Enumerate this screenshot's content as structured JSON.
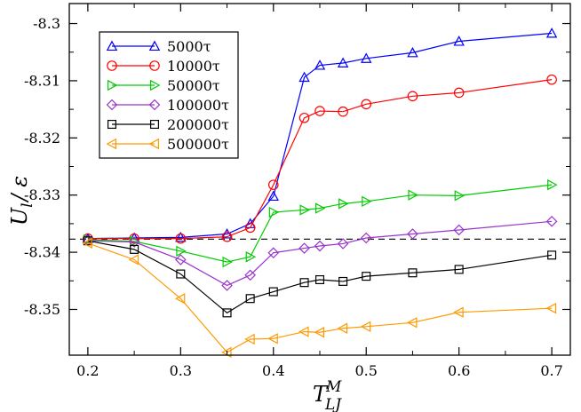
{
  "chart_data": {
    "type": "line",
    "xlabel": {
      "main": "T",
      "sub": "LJ",
      "sup": "M"
    },
    "ylabel": {
      "main": "U",
      "sub": "l",
      "rest": "/ ε"
    },
    "xlim": [
      0.18,
      0.72
    ],
    "ylim": [
      -8.358,
      -8.2965
    ],
    "xticks": [
      0.2,
      0.3,
      0.4,
      0.5,
      0.6,
      0.7
    ],
    "xtick_labels": [
      "0.2",
      "0.3",
      "0.4",
      "0.5",
      "0.6",
      "0.7"
    ],
    "yticks": [
      -8.35,
      -8.34,
      -8.33,
      -8.32,
      -8.31,
      -8.3
    ],
    "ytick_labels": [
      "-8.35",
      "-8.34",
      "-8.33",
      "-8.32",
      "-8.31",
      "-8.3"
    ],
    "reference_line": {
      "y": -8.3377,
      "style": "dashed",
      "color": "#000000"
    },
    "grid": false,
    "legend_position": "top-left",
    "x": [
      0.2,
      0.25,
      0.3,
      0.35,
      0.375,
      0.4,
      0.4333,
      0.45,
      0.475,
      0.5,
      0.55,
      0.6,
      0.7
    ],
    "series": [
      {
        "name": "5000τ",
        "color": "#0000ff",
        "marker": "triangle-up",
        "values": [
          -8.3376,
          -8.3375,
          -8.3374,
          -8.3368,
          -8.335,
          -8.3302,
          -8.3094,
          -8.3073,
          -8.3069,
          -8.3061,
          -8.3051,
          -8.3031,
          -8.3017
        ]
      },
      {
        "name": "10000τ",
        "color": "#ff0000",
        "marker": "circle",
        "values": [
          -8.3376,
          -8.3376,
          -8.3376,
          -8.3373,
          -8.3357,
          -8.3282,
          -8.3165,
          -8.3153,
          -8.3154,
          -8.3141,
          -8.3127,
          -8.3121,
          -8.3098
        ]
      },
      {
        "name": "50000τ",
        "color": "#00cc00",
        "marker": "triangle-right",
        "values": [
          -8.3378,
          -8.3381,
          -8.3398,
          -8.3417,
          -8.3408,
          -8.333,
          -8.3326,
          -8.3323,
          -8.3315,
          -8.3311,
          -8.33,
          -8.3301,
          -8.3282
        ]
      },
      {
        "name": "100000τ",
        "color": "#9933cc",
        "marker": "diamond",
        "values": [
          -8.338,
          -8.3382,
          -8.3413,
          -8.3458,
          -8.344,
          -8.3401,
          -8.3393,
          -8.3389,
          -8.3385,
          -8.3375,
          -8.3368,
          -8.3361,
          -8.3346
        ]
      },
      {
        "name": "200000τ",
        "color": "#000000",
        "marker": "square",
        "values": [
          -8.338,
          -8.3395,
          -8.3438,
          -8.3506,
          -8.3481,
          -8.3469,
          -8.3453,
          -8.3448,
          -8.3451,
          -8.3442,
          -8.3436,
          -8.343,
          -8.3405
        ]
      },
      {
        "name": "500000τ",
        "color": "#ff9900",
        "marker": "triangle-left",
        "values": [
          -8.3384,
          -8.3413,
          -8.3481,
          -8.3575,
          -8.3552,
          -8.3551,
          -8.3539,
          -8.354,
          -8.3533,
          -8.353,
          -8.3523,
          -8.3505,
          -8.3498
        ]
      }
    ]
  }
}
